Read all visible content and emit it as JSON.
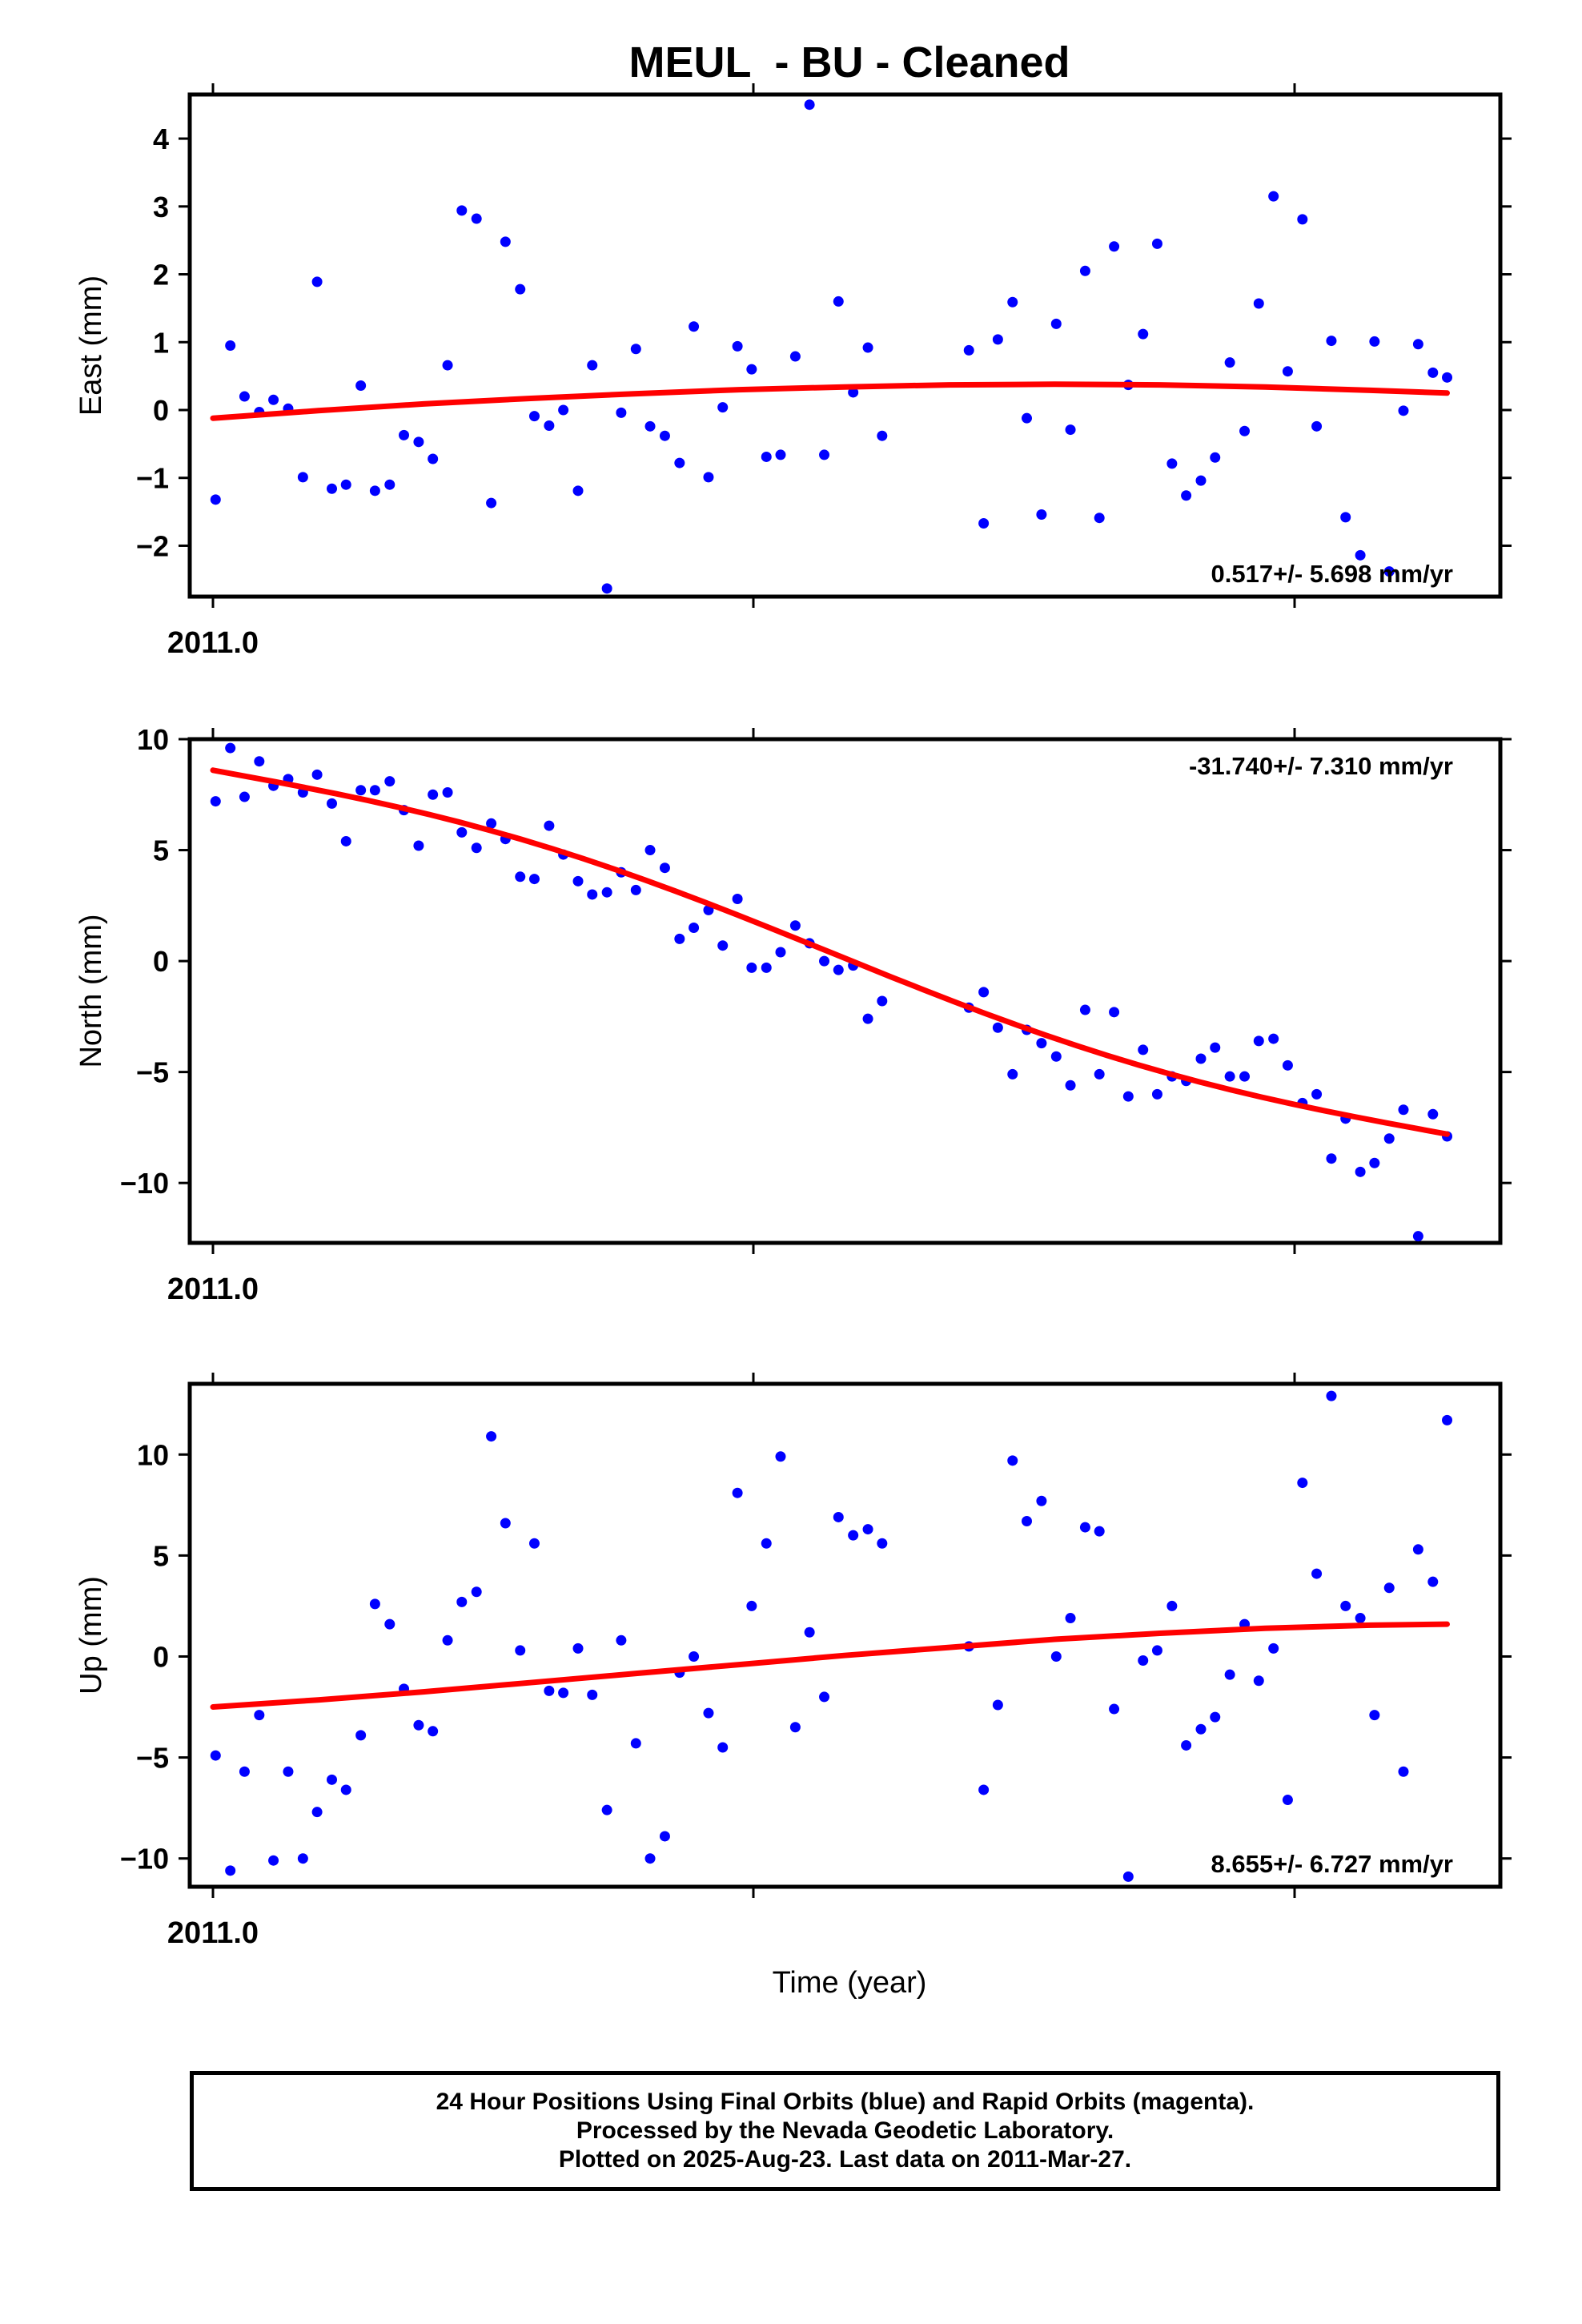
{
  "title": "MEUL  - BU - Cleaned",
  "xlabel": "Time (year)",
  "x_tick_label": "2011.0",
  "colors": {
    "data": "#0000ff",
    "fit": "#ff0000",
    "frame": "#000000"
  },
  "footer": {
    "line1": "24 Hour Positions Using Final Orbits (blue) and Rapid Orbits (magenta).",
    "line2": "Processed by the Nevada Geodetic Laboratory.",
    "line3": "Plotted on 2025-Aug-23. Last data on 2011-Mar-27."
  },
  "chart_data": [
    {
      "type": "scatter",
      "ylabel": "East (mm)",
      "rate_label": "0.517+/- 5.698 mm/yr",
      "rate_position": "bottom-right",
      "xlim": [
        2011.0,
        2011.24
      ],
      "ylim": [
        -2.75,
        4.65
      ],
      "yticks": [
        4,
        3,
        2,
        1,
        0,
        -1,
        -2
      ],
      "ytick_labels": [
        "4",
        "3",
        "2",
        "1",
        "0",
        "−1",
        "−2"
      ],
      "x": [
        2011.0005,
        2011.0033,
        2011.006,
        2011.0088,
        2011.0115,
        2011.0143,
        2011.0171,
        2011.0198,
        2011.0226,
        2011.0253,
        2011.0281,
        2011.0308,
        2011.0336,
        2011.0363,
        2011.0391,
        2011.0418,
        2011.0446,
        2011.0473,
        2011.0501,
        2011.0529,
        2011.0556,
        2011.0584,
        2011.0611,
        2011.0639,
        2011.0666,
        2011.0694,
        2011.0721,
        2011.0749,
        2011.0776,
        2011.0804,
        2011.0831,
        2011.0859,
        2011.0887,
        2011.0914,
        2011.0942,
        2011.0969,
        2011.0997,
        2011.1024,
        2011.1052,
        2011.1079,
        2011.1107,
        2011.1134,
        2011.1162,
        2011.1189,
        2011.1217,
        2011.1245,
        2011.1272,
        2011.1437,
        2011.1465,
        2011.1492,
        2011.152,
        2011.1547,
        2011.1575,
        2011.1603,
        2011.163,
        2011.1658,
        2011.1685,
        2011.1713,
        2011.174,
        2011.1768,
        2011.1795,
        2011.1823,
        2011.185,
        2011.1878,
        2011.1905,
        2011.1933,
        2011.1961,
        2011.1988,
        2011.2016,
        2011.2043,
        2011.2071,
        2011.2098,
        2011.2126,
        2011.2153,
        2011.2181,
        2011.2208,
        2011.2236,
        2011.2263,
        2011.2291,
        2011.2319,
        2011.2346
      ],
      "y": [
        -1.32,
        0.95,
        0.2,
        -0.03,
        0.15,
        0.02,
        -0.99,
        1.89,
        -1.16,
        -1.1,
        0.36,
        -1.19,
        -1.1,
        -0.37,
        -0.47,
        -0.72,
        0.66,
        2.94,
        2.82,
        -1.37,
        2.48,
        1.78,
        -0.09,
        -0.23,
        0.0,
        -1.19,
        0.66,
        -2.63,
        -0.04,
        0.9,
        -0.24,
        -0.38,
        -0.78,
        1.23,
        -0.99,
        0.04,
        0.94,
        0.6,
        -0.69,
        -0.66,
        0.79,
        4.5,
        -0.66,
        1.6,
        0.26,
        0.92,
        -0.38,
        0.88,
        -1.67,
        1.04,
        1.59,
        -0.12,
        -1.54,
        1.27,
        -0.29,
        2.05,
        -1.59,
        2.41,
        0.37,
        1.12,
        2.45,
        -0.79,
        -1.26,
        -1.04,
        -0.7,
        0.7,
        -0.31,
        1.57,
        3.15,
        0.57,
        2.81,
        -0.24,
        1.02,
        -1.58,
        -2.14,
        1.01,
        -2.38,
        -0.01,
        0.97,
        0.55,
        0.48
      ],
      "fit": {
        "x": [
          2011.0,
          2011.02,
          2011.04,
          2011.06,
          2011.08,
          2011.1,
          2011.12,
          2011.14,
          2011.16,
          2011.18,
          2011.2,
          2011.22,
          2011.2346
        ],
        "y": [
          -0.12,
          -0.01,
          0.09,
          0.17,
          0.24,
          0.3,
          0.34,
          0.37,
          0.38,
          0.37,
          0.34,
          0.29,
          0.25
        ]
      }
    },
    {
      "type": "scatter",
      "ylabel": "North (mm)",
      "rate_label": "-31.740+/- 7.310 mm/yr",
      "rate_position": "top-right",
      "xlim": [
        2011.0,
        2011.24
      ],
      "ylim": [
        -12.7,
        10.0
      ],
      "yticks": [
        10,
        5,
        0,
        -5,
        -10
      ],
      "ytick_labels": [
        "10",
        "5",
        "0",
        "−5",
        "−10"
      ],
      "x": [
        2011.0005,
        2011.0033,
        2011.006,
        2011.0088,
        2011.0115,
        2011.0143,
        2011.0171,
        2011.0198,
        2011.0226,
        2011.0253,
        2011.0281,
        2011.0308,
        2011.0336,
        2011.0363,
        2011.0391,
        2011.0418,
        2011.0446,
        2011.0473,
        2011.0501,
        2011.0529,
        2011.0556,
        2011.0584,
        2011.0611,
        2011.0639,
        2011.0666,
        2011.0694,
        2011.0721,
        2011.0749,
        2011.0776,
        2011.0804,
        2011.0831,
        2011.0859,
        2011.0887,
        2011.0914,
        2011.0942,
        2011.0969,
        2011.0997,
        2011.1024,
        2011.1052,
        2011.1079,
        2011.1107,
        2011.1134,
        2011.1162,
        2011.1189,
        2011.1217,
        2011.1245,
        2011.1272,
        2011.1437,
        2011.1465,
        2011.1492,
        2011.152,
        2011.1547,
        2011.1575,
        2011.1603,
        2011.163,
        2011.1658,
        2011.1685,
        2011.1713,
        2011.174,
        2011.1768,
        2011.1795,
        2011.1823,
        2011.185,
        2011.1878,
        2011.1905,
        2011.1933,
        2011.1961,
        2011.1988,
        2011.2016,
        2011.2043,
        2011.2071,
        2011.2098,
        2011.2126,
        2011.2153,
        2011.2181,
        2011.2208,
        2011.2236,
        2011.2263,
        2011.2291,
        2011.2319,
        2011.2346
      ],
      "y": [
        7.2,
        9.6,
        7.4,
        9.0,
        7.9,
        8.2,
        7.6,
        8.4,
        7.1,
        5.4,
        7.7,
        7.7,
        8.1,
        6.8,
        5.2,
        7.5,
        7.6,
        5.8,
        5.1,
        6.2,
        5.5,
        3.8,
        3.7,
        6.1,
        4.8,
        3.6,
        3.0,
        3.1,
        4.0,
        3.2,
        5.0,
        4.2,
        1.0,
        1.5,
        2.3,
        0.7,
        2.8,
        -0.3,
        -0.3,
        0.4,
        1.6,
        0.8,
        0.0,
        -0.4,
        -0.2,
        -2.6,
        -1.8,
        -2.1,
        -1.4,
        -3.0,
        -5.1,
        -3.1,
        -3.7,
        -4.3,
        -5.6,
        -2.2,
        -5.1,
        -2.3,
        -6.1,
        -4.0,
        -6.0,
        -5.2,
        -5.4,
        -4.4,
        -3.9,
        -5.2,
        -5.2,
        -3.6,
        -3.5,
        -4.7,
        -6.4,
        -6.0,
        -8.9,
        -7.1,
        -9.5,
        -9.1,
        -8.0,
        -6.7,
        -12.4,
        -6.9,
        -7.9
      ]
    },
    {
      "type": "scatter",
      "ylabel": "Up (mm)",
      "rate_label": "8.655+/- 6.727 mm/yr",
      "rate_position": "bottom-right",
      "xlim": [
        2011.0,
        2011.24
      ],
      "ylim": [
        -11.4,
        13.5
      ],
      "yticks": [
        10,
        5,
        0,
        -5,
        -10
      ],
      "ytick_labels": [
        "10",
        "5",
        "0",
        "−5",
        "−10"
      ],
      "x": [
        2011.0005,
        2011.0033,
        2011.006,
        2011.0088,
        2011.0115,
        2011.0143,
        2011.0171,
        2011.0198,
        2011.0226,
        2011.0253,
        2011.0281,
        2011.0308,
        2011.0336,
        2011.0363,
        2011.0391,
        2011.0418,
        2011.0446,
        2011.0473,
        2011.0501,
        2011.0529,
        2011.0556,
        2011.0584,
        2011.0611,
        2011.0639,
        2011.0666,
        2011.0694,
        2011.0721,
        2011.0749,
        2011.0776,
        2011.0804,
        2011.0831,
        2011.0859,
        2011.0887,
        2011.0914,
        2011.0942,
        2011.0969,
        2011.0997,
        2011.1024,
        2011.1052,
        2011.1079,
        2011.1107,
        2011.1134,
        2011.1162,
        2011.1189,
        2011.1217,
        2011.1245,
        2011.1272,
        2011.1437,
        2011.1465,
        2011.1492,
        2011.152,
        2011.1547,
        2011.1575,
        2011.1603,
        2011.163,
        2011.1658,
        2011.1685,
        2011.1713,
        2011.174,
        2011.1768,
        2011.1795,
        2011.1823,
        2011.185,
        2011.1878,
        2011.1905,
        2011.1933,
        2011.1961,
        2011.1988,
        2011.2016,
        2011.2043,
        2011.2071,
        2011.2098,
        2011.2126,
        2011.2153,
        2011.2181,
        2011.2208,
        2011.2236,
        2011.2263,
        2011.2291,
        2011.2319,
        2011.2346
      ],
      "y": [
        -4.9,
        -10.6,
        -5.7,
        -2.9,
        -10.1,
        -5.7,
        -10.0,
        -7.7,
        -6.1,
        -6.6,
        -3.9,
        2.6,
        1.6,
        -1.6,
        -3.4,
        -3.7,
        0.8,
        2.7,
        3.2,
        10.9,
        6.6,
        0.3,
        5.6,
        -1.7,
        -1.8,
        0.4,
        -1.9,
        -7.6,
        0.8,
        -4.3,
        -10.0,
        -8.9,
        -0.8,
        0.0,
        -2.8,
        -4.5,
        8.1,
        2.5,
        5.6,
        9.9,
        -3.5,
        1.2,
        -2.0,
        6.9,
        6.0,
        6.3,
        5.6,
        0.5,
        -6.6,
        -2.4,
        9.7,
        6.7,
        7.7,
        0.0,
        1.9,
        6.4,
        6.2,
        -2.6,
        -10.9,
        -0.2,
        0.3,
        2.5,
        -4.4,
        -3.6,
        -3.0,
        -0.9,
        1.6,
        -1.2,
        0.4,
        -7.1,
        8.6,
        4.1,
        12.9,
        2.5,
        1.9,
        -2.9,
        3.4,
        -5.7,
        5.3,
        3.7,
        11.7
      ],
      "fit": {
        "x": [
          2011.0,
          2011.02,
          2011.04,
          2011.06,
          2011.08,
          2011.1,
          2011.12,
          2011.14,
          2011.16,
          2011.18,
          2011.2,
          2011.22,
          2011.2346
        ],
        "y": [
          -2.5,
          -2.15,
          -1.75,
          -1.3,
          -0.85,
          -0.4,
          0.05,
          0.45,
          0.85,
          1.15,
          1.4,
          1.55,
          1.6
        ]
      }
    }
  ]
}
